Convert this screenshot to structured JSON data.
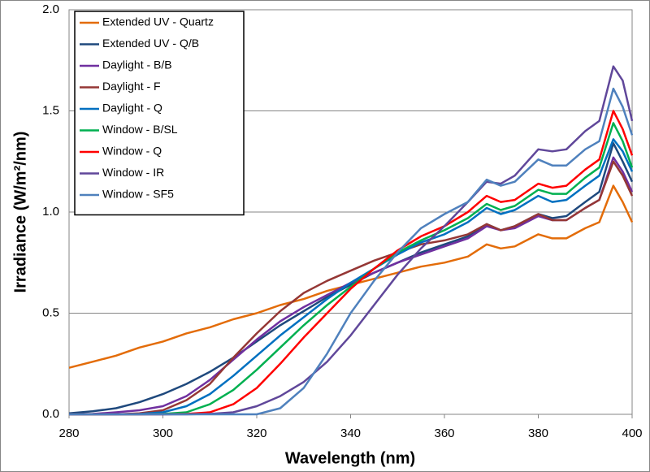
{
  "chart_data": {
    "type": "line",
    "x_label": "Wavelength (nm)",
    "y_label": "Irradiance (W/m²/nm)",
    "x": [
      280,
      285,
      290,
      295,
      300,
      305,
      310,
      315,
      320,
      325,
      330,
      335,
      340,
      345,
      350,
      355,
      360,
      365,
      369,
      372,
      375,
      380,
      383,
      386,
      390,
      393,
      396,
      398,
      400
    ],
    "xlim": [
      280,
      400
    ],
    "xticks": [
      280,
      300,
      320,
      340,
      360,
      380,
      400
    ],
    "ylim": [
      0,
      2
    ],
    "yticks": [
      {
        "value": 0,
        "label": "0.0"
      },
      0.5,
      {
        "value": 1,
        "label": "1.0"
      },
      1.5,
      {
        "value": 2,
        "label": "2.0"
      }
    ],
    "grid": true,
    "legend": "upper left",
    "series": [
      {
        "name": "Extended UV - Quartz",
        "color": "#e36c09",
        "values": [
          0.23,
          0.26,
          0.29,
          0.33,
          0.36,
          0.4,
          0.43,
          0.47,
          0.5,
          0.54,
          0.57,
          0.61,
          0.64,
          0.67,
          0.7,
          0.73,
          0.75,
          0.78,
          0.84,
          0.82,
          0.83,
          0.89,
          0.87,
          0.87,
          0.92,
          0.95,
          1.13,
          1.05,
          0.95
        ]
      },
      {
        "name": "Extended UV - Q/B",
        "color": "#1f497d",
        "values": [
          0.005,
          0.015,
          0.03,
          0.06,
          0.1,
          0.15,
          0.21,
          0.28,
          0.36,
          0.44,
          0.51,
          0.58,
          0.64,
          0.7,
          0.75,
          0.8,
          0.84,
          0.88,
          0.94,
          0.91,
          0.93,
          0.99,
          0.97,
          0.98,
          1.05,
          1.1,
          1.34,
          1.25,
          1.15
        ]
      },
      {
        "name": "Daylight - B/B",
        "color": "#7030a0",
        "values": [
          0,
          0.002,
          0.01,
          0.02,
          0.04,
          0.09,
          0.17,
          0.27,
          0.37,
          0.46,
          0.53,
          0.59,
          0.65,
          0.7,
          0.75,
          0.79,
          0.83,
          0.87,
          0.93,
          0.91,
          0.92,
          0.98,
          0.96,
          0.96,
          1.02,
          1.06,
          1.27,
          1.2,
          1.1
        ]
      },
      {
        "name": "Daylight - F",
        "color": "#953735",
        "values": [
          0,
          0,
          0,
          0.005,
          0.02,
          0.07,
          0.15,
          0.28,
          0.4,
          0.51,
          0.6,
          0.66,
          0.71,
          0.76,
          0.8,
          0.84,
          0.86,
          0.89,
          0.94,
          0.91,
          0.93,
          0.99,
          0.96,
          0.96,
          1.02,
          1.06,
          1.25,
          1.18,
          1.08
        ]
      },
      {
        "name": "Daylight - Q",
        "color": "#0070c0",
        "values": [
          0,
          0,
          0,
          0.002,
          0.01,
          0.04,
          0.1,
          0.19,
          0.29,
          0.39,
          0.48,
          0.57,
          0.65,
          0.72,
          0.79,
          0.85,
          0.89,
          0.95,
          1.02,
          0.99,
          1.01,
          1.08,
          1.05,
          1.06,
          1.13,
          1.18,
          1.36,
          1.3,
          1.2
        ]
      },
      {
        "name": "Window - B/SL",
        "color": "#00b050",
        "values": [
          0,
          0,
          0,
          0,
          0.002,
          0.01,
          0.05,
          0.12,
          0.22,
          0.33,
          0.44,
          0.54,
          0.63,
          0.72,
          0.8,
          0.86,
          0.91,
          0.97,
          1.04,
          1.01,
          1.03,
          1.11,
          1.09,
          1.09,
          1.17,
          1.22,
          1.44,
          1.35,
          1.22
        ]
      },
      {
        "name": "Window - Q",
        "color": "#ff0000",
        "values": [
          0,
          0,
          0,
          0,
          0,
          0.002,
          0.01,
          0.05,
          0.13,
          0.25,
          0.38,
          0.5,
          0.62,
          0.72,
          0.81,
          0.88,
          0.93,
          1.0,
          1.08,
          1.05,
          1.06,
          1.14,
          1.12,
          1.13,
          1.21,
          1.26,
          1.5,
          1.41,
          1.28
        ]
      },
      {
        "name": "Window - IR",
        "color": "#60479a",
        "values": [
          0,
          0,
          0,
          0,
          0,
          0,
          0.002,
          0.01,
          0.04,
          0.09,
          0.16,
          0.26,
          0.39,
          0.54,
          0.69,
          0.82,
          0.93,
          1.05,
          1.15,
          1.14,
          1.18,
          1.31,
          1.3,
          1.31,
          1.4,
          1.45,
          1.72,
          1.65,
          1.45
        ]
      },
      {
        "name": "Window - SF5",
        "color": "#4f81bd",
        "values": [
          0,
          0,
          0,
          0,
          0,
          0,
          0,
          0,
          0,
          0.03,
          0.13,
          0.3,
          0.5,
          0.66,
          0.8,
          0.92,
          0.99,
          1.05,
          1.16,
          1.13,
          1.15,
          1.26,
          1.23,
          1.23,
          1.31,
          1.35,
          1.61,
          1.52,
          1.38
        ]
      }
    ]
  }
}
